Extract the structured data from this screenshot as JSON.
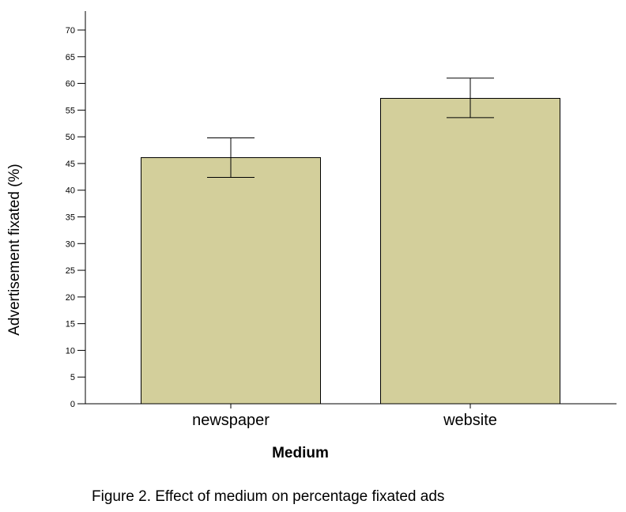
{
  "chart_data": {
    "type": "bar",
    "categories": [
      "newspaper",
      "website"
    ],
    "values": [
      46.1,
      57.2
    ],
    "error_bars": [
      {
        "low": 42.4,
        "high": 49.8
      },
      {
        "low": 53.6,
        "high": 61.0
      }
    ],
    "xlabel": "Medium",
    "ylabel": "Advertisement fixated (%)",
    "ylim": [
      0,
      70
    ],
    "yticks": [
      0,
      5,
      10,
      15,
      20,
      25,
      30,
      35,
      40,
      45,
      50,
      55,
      60,
      65,
      70
    ],
    "grid": false,
    "colors": {
      "bar_fill": "#d3cf9b",
      "bar_stroke": "#000000"
    }
  },
  "caption": "Figure 2. Effect of medium on percentage fixated ads"
}
